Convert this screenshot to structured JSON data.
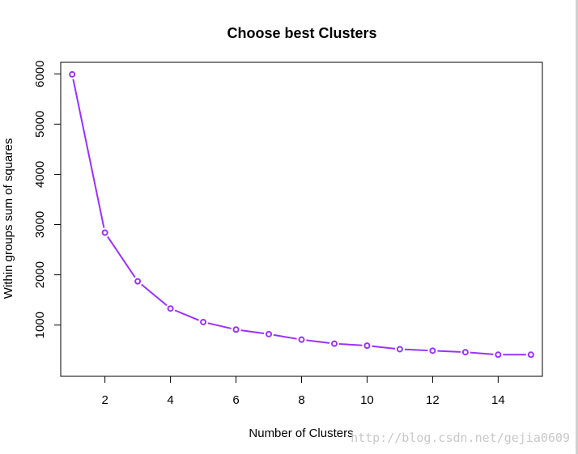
{
  "chart_data": {
    "type": "line",
    "title": "Choose best Clusters",
    "xlabel": "Number of Clusters",
    "ylabel": "Within groups sum of squares",
    "x": [
      1,
      2,
      3,
      4,
      5,
      6,
      7,
      8,
      9,
      10,
      11,
      12,
      13,
      14,
      15
    ],
    "series": [
      {
        "values": [
          5990,
          2840,
          1870,
          1330,
          1060,
          910,
          820,
          710,
          630,
          590,
          520,
          490,
          460,
          410,
          410
        ]
      }
    ],
    "xlim": [
      0.65,
      15.35
    ],
    "ylim": [
      -20,
      6230
    ],
    "xticks": [
      2,
      4,
      6,
      8,
      10,
      12,
      14
    ],
    "yticks": [
      1000,
      2000,
      3000,
      4000,
      5000,
      6000
    ],
    "grid": false,
    "legend": "none",
    "line_color": "#9b30ff",
    "point_style": "open-circle"
  },
  "watermark": "http://blog.csdn.net/gejia0609"
}
